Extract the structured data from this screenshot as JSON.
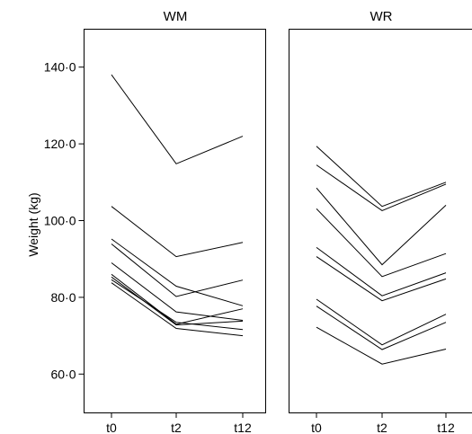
{
  "chart_data": {
    "type": "line",
    "ylabel": "Weight (kg)",
    "ylim": [
      50,
      150
    ],
    "yticks": [
      60,
      80,
      100,
      120,
      140
    ],
    "ytick_labels": [
      "60·0",
      "80·0",
      "100·0",
      "120·0",
      "140·0"
    ],
    "categories": [
      "t0",
      "t2",
      "t12"
    ],
    "grid": false,
    "panels": [
      {
        "title": "WM",
        "series": [
          {
            "values": [
              138.0,
              114.8,
              122.0
            ]
          },
          {
            "values": [
              103.7,
              90.6,
              94.3
            ]
          },
          {
            "values": [
              95.2,
              82.9,
              77.8
            ]
          },
          {
            "values": [
              93.9,
              80.2,
              84.5
            ]
          },
          {
            "values": [
              89.0,
              76.2,
              74.0
            ]
          },
          {
            "values": [
              86.0,
              73.0,
              77.0
            ]
          },
          {
            "values": [
              85.3,
              72.8,
              73.8
            ]
          },
          {
            "values": [
              84.6,
              73.5,
              71.6
            ]
          },
          {
            "values": [
              83.8,
              71.9,
              70.0
            ]
          }
        ]
      },
      {
        "title": "WR",
        "series": [
          {
            "values": [
              119.4,
              103.7,
              110.0
            ]
          },
          {
            "values": [
              114.5,
              102.6,
              109.5
            ]
          },
          {
            "values": [
              108.5,
              88.5,
              104.0
            ]
          },
          {
            "values": [
              103.1,
              85.4,
              91.4
            ]
          },
          {
            "values": [
              93.0,
              80.4,
              86.4
            ]
          },
          {
            "values": [
              90.6,
              79.1,
              84.8
            ]
          },
          {
            "values": [
              79.5,
              67.6,
              75.6
            ]
          },
          {
            "values": [
              77.7,
              66.4,
              73.5
            ]
          },
          {
            "values": [
              72.2,
              62.6,
              66.5
            ]
          }
        ]
      }
    ]
  }
}
